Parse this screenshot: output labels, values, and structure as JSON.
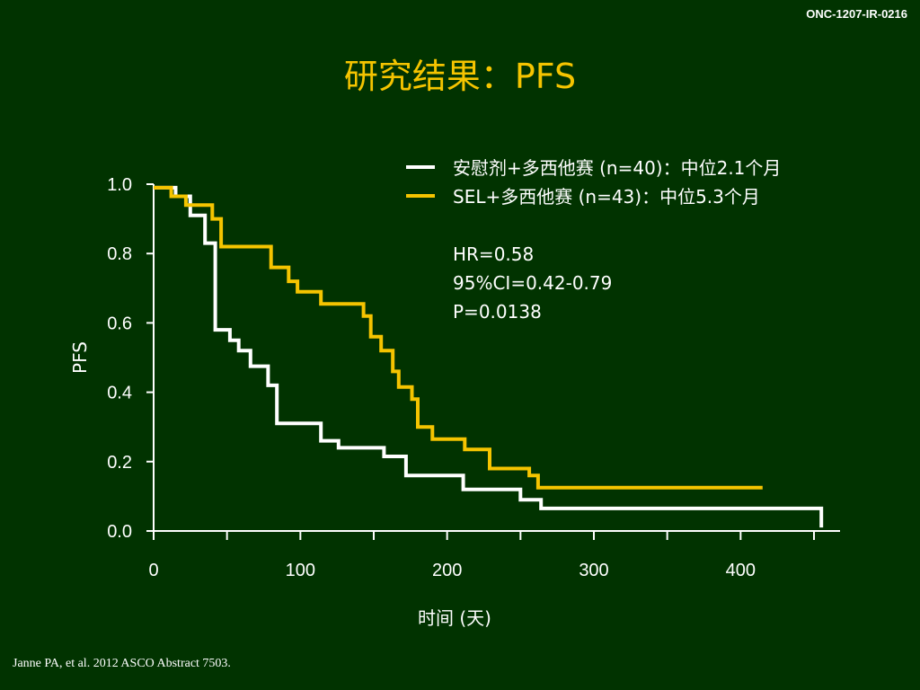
{
  "header": {
    "doc_code": "ONC-1207-IR-0216",
    "title": "研究结果：PFS"
  },
  "footer": {
    "citation": "Janne PA, et al. 2012 ASCO Abstract 7503."
  },
  "colors": {
    "background": "#013300",
    "placebo": "#ffffff",
    "sel": "#f5c400",
    "title": "#f5c400"
  },
  "chart_data": {
    "type": "line",
    "subtype": "kaplan-meier step",
    "ylabel": "PFS",
    "xlabel": "时间 (天)",
    "xlim": [
      0,
      460
    ],
    "ylim": [
      0,
      1.0
    ],
    "x_ticks": [
      0,
      100,
      200,
      300,
      400
    ],
    "y_ticks": [
      "0.0",
      "0.2",
      "0.4",
      "0.6",
      "0.8",
      "1.0"
    ],
    "legend_placement": "top-right",
    "series": [
      {
        "name": "安慰剂+多西他赛 (n=40)：中位2.1个月",
        "color": "#ffffff",
        "x": [
          0,
          15,
          15,
          25,
          25,
          35,
          35,
          42,
          42,
          52,
          52,
          58,
          58,
          66,
          66,
          78,
          78,
          84,
          84,
          114,
          114,
          126,
          126,
          157,
          157,
          172,
          172,
          211,
          211,
          250,
          250,
          264,
          264,
          455,
          455
        ],
        "y": [
          0.99,
          0.99,
          0.965,
          0.965,
          0.91,
          0.91,
          0.83,
          0.83,
          0.58,
          0.58,
          0.55,
          0.55,
          0.52,
          0.52,
          0.475,
          0.475,
          0.42,
          0.42,
          0.31,
          0.31,
          0.26,
          0.26,
          0.24,
          0.24,
          0.215,
          0.215,
          0.16,
          0.16,
          0.12,
          0.12,
          0.09,
          0.09,
          0.065,
          0.065,
          0.01
        ]
      },
      {
        "name": "SEL+多西他赛 (n=43)：中位5.3个月",
        "color": "#f5c400",
        "x": [
          0,
          12,
          12,
          22,
          22,
          40,
          40,
          46,
          46,
          80,
          80,
          92,
          92,
          98,
          98,
          114,
          114,
          125,
          125,
          143,
          143,
          148,
          148,
          155,
          155,
          163,
          163,
          167,
          167,
          176,
          176,
          180,
          180,
          190,
          190,
          198,
          198,
          212,
          212,
          229,
          229,
          256,
          256,
          262,
          262,
          288,
          288,
          415
        ],
        "y": [
          0.99,
          0.99,
          0.965,
          0.965,
          0.94,
          0.94,
          0.9,
          0.9,
          0.82,
          0.82,
          0.76,
          0.76,
          0.72,
          0.72,
          0.69,
          0.69,
          0.655,
          0.655,
          0.655,
          0.655,
          0.62,
          0.62,
          0.56,
          0.56,
          0.52,
          0.52,
          0.46,
          0.46,
          0.415,
          0.415,
          0.38,
          0.38,
          0.3,
          0.3,
          0.265,
          0.265,
          0.265,
          0.265,
          0.235,
          0.235,
          0.18,
          0.18,
          0.16,
          0.16,
          0.125,
          0.125,
          0.125,
          0.125
        ]
      }
    ],
    "legend": [
      {
        "label": "安慰剂+多西他赛 (n=40)：中位2.1个月",
        "color": "#ffffff"
      },
      {
        "label": "SEL+多西他赛 (n=43)：中位5.3个月",
        "color": "#f5c400"
      }
    ],
    "annotations": [
      "HR=0.58",
      "95%CI=0.42-0.79",
      "P=0.0138"
    ]
  }
}
